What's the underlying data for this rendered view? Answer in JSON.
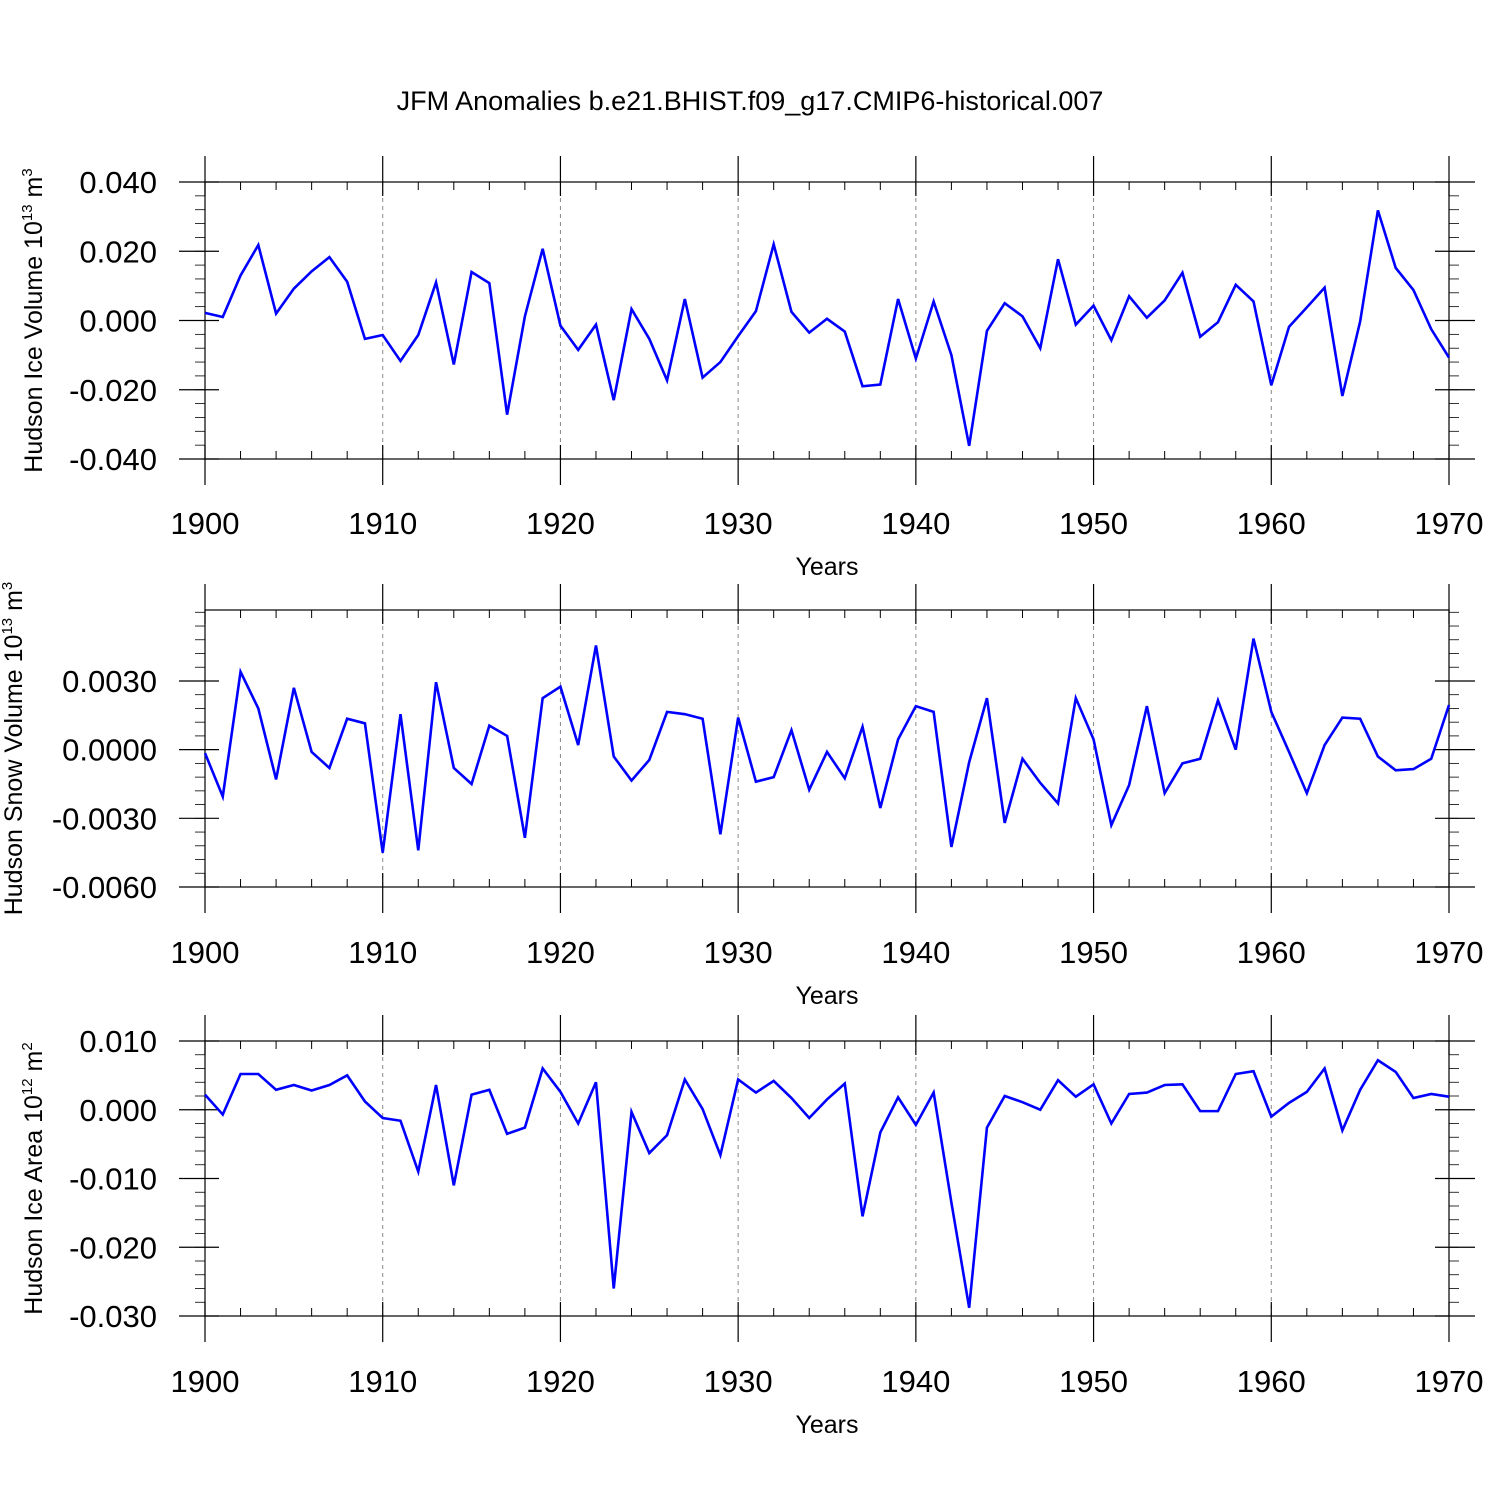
{
  "title": "JFM Anomalies b.e21.BHIST.f09_g17.CMIP6-historical.007",
  "line_color": "#0000ff",
  "chart_data": [
    {
      "type": "line",
      "ylabel_main": "Hudson Ice Volume 10",
      "ylabel_exp": "13",
      "ylabel_unit": " m",
      "ylabel_unit_exp": "3",
      "xlabel": "Years",
      "xlim": [
        1900,
        1970
      ],
      "ylim": [
        -0.04,
        0.04
      ],
      "yticks": [
        -0.04,
        -0.02,
        0.0,
        0.02,
        0.04
      ],
      "ytick_labels": [
        "-0.040",
        "-0.020",
        "0.000",
        "0.020",
        "0.040"
      ],
      "ytick_decimals": 3,
      "xticks": [
        1900,
        1910,
        1920,
        1930,
        1940,
        1950,
        1960,
        1970
      ],
      "xtick_labels": [
        "1900",
        "1910",
        "1920",
        "1930",
        "1940",
        "1950",
        "1960",
        "1970"
      ],
      "grid": "vertical-dashed",
      "series": [
        {
          "x_start": 1900,
          "values": [
            0.0022,
            0.001,
            0.013,
            0.0218,
            0.002,
            0.0092,
            0.0142,
            0.0183,
            0.0112,
            -0.0053,
            -0.0042,
            -0.0117,
            -0.0042,
            0.011,
            -0.0127,
            0.014,
            0.0108,
            -0.0272,
            0.0012,
            0.0207,
            -0.0015,
            -0.0085,
            -0.0012,
            -0.023,
            0.0033,
            -0.0053,
            -0.0173,
            0.0062,
            -0.0165,
            -0.012,
            -0.0045,
            0.0027,
            0.022,
            0.0025,
            -0.0035,
            0.0005,
            -0.0032,
            -0.019,
            -0.0185,
            0.0062,
            -0.011,
            0.0055,
            -0.01,
            -0.0362,
            -0.003,
            0.005,
            0.0012,
            -0.008,
            0.0177,
            -0.0012,
            0.0043,
            -0.0057,
            0.007,
            0.0008,
            0.0058,
            0.0138,
            -0.0047,
            -0.0005,
            0.0103,
            0.0055,
            -0.0187,
            -0.0018,
            0.0038,
            0.0095,
            -0.0218,
            -0.0003,
            0.0318,
            0.0152,
            0.0088,
            -0.0025,
            -0.0107
          ]
        }
      ]
    },
    {
      "type": "line",
      "ylabel_main": "Hudson Snow Volume 10",
      "ylabel_exp": "13",
      "ylabel_unit": " m",
      "ylabel_unit_exp": "3",
      "xlabel": "Years",
      "xlim": [
        1900,
        1970
      ],
      "ylim": [
        -0.006,
        0.0061
      ],
      "yticks": [
        -0.006,
        -0.003,
        0.0,
        0.003
      ],
      "ytick_labels": [
        "-0.0060",
        "-0.0030",
        "0.0000",
        "0.0030"
      ],
      "ytick_decimals": 4,
      "xticks": [
        1900,
        1910,
        1920,
        1930,
        1940,
        1950,
        1960,
        1970
      ],
      "xtick_labels": [
        "1900",
        "1910",
        "1920",
        "1930",
        "1940",
        "1950",
        "1960",
        "1970"
      ],
      "grid": "vertical-dashed",
      "series": [
        {
          "x_start": 1900,
          "values": [
            -0.00015,
            -0.00205,
            0.0034,
            0.0018,
            -0.0013,
            0.0027,
            -0.0001,
            -0.0008,
            0.00135,
            0.00115,
            -0.0045,
            0.00155,
            -0.0044,
            0.00295,
            -0.0008,
            -0.0015,
            0.00105,
            0.0006,
            -0.00385,
            0.00225,
            0.00275,
            0.0002,
            0.00455,
            -0.0003,
            -0.00135,
            -0.00045,
            0.00165,
            0.00155,
            0.00135,
            -0.0037,
            0.0014,
            -0.0014,
            -0.0012,
            0.00085,
            -0.00175,
            -0.0001,
            -0.00125,
            0.001,
            -0.00255,
            0.00045,
            0.0019,
            0.00165,
            -0.00425,
            -0.00055,
            0.00225,
            -0.0032,
            -0.0004,
            -0.00145,
            -0.00235,
            0.00225,
            0.00045,
            -0.0033,
            -0.00155,
            0.0019,
            -0.0019,
            -0.0006,
            -0.0004,
            0.00215,
            0.0,
            0.00485,
            0.00165,
            -0.0001,
            -0.0019,
            0.0002,
            0.0014,
            0.00135,
            -0.0003,
            -0.0009,
            -0.00085,
            -0.0004,
            0.00195
          ]
        }
      ]
    },
    {
      "type": "line",
      "ylabel_main": "Hudson Ice Area 10",
      "ylabel_exp": "12",
      "ylabel_unit": " m",
      "ylabel_unit_exp": "2",
      "xlabel": "Years",
      "xlim": [
        1900,
        1970
      ],
      "ylim": [
        -0.03,
        0.01
      ],
      "yticks": [
        -0.03,
        -0.02,
        -0.01,
        0.0,
        0.01
      ],
      "ytick_labels": [
        "-0.030",
        "-0.020",
        "-0.010",
        "0.000",
        "0.010"
      ],
      "ytick_decimals": 3,
      "xticks": [
        1900,
        1910,
        1920,
        1930,
        1940,
        1950,
        1960,
        1970
      ],
      "xtick_labels": [
        "1900",
        "1910",
        "1920",
        "1930",
        "1940",
        "1950",
        "1960",
        "1970"
      ],
      "grid": "vertical-dashed",
      "series": [
        {
          "x_start": 1900,
          "values": [
            0.0022,
            -0.0007,
            0.0052,
            0.0052,
            0.0029,
            0.0036,
            0.0028,
            0.0036,
            0.005,
            0.0012,
            -0.0012,
            -0.0016,
            -0.009,
            0.0036,
            -0.011,
            0.0022,
            0.0029,
            -0.0035,
            -0.0026,
            0.006,
            0.0026,
            -0.002,
            0.004,
            -0.026,
            -0.0003,
            -0.0063,
            -0.0037,
            0.0044,
            0.0001,
            -0.0066,
            0.0044,
            0.0025,
            0.0042,
            0.0017,
            -0.0012,
            0.0015,
            0.0038,
            -0.0155,
            -0.0033,
            0.0018,
            -0.0022,
            0.0025,
            -0.0135,
            -0.0288,
            -0.0026,
            0.002,
            0.0011,
            0.0,
            0.0043,
            0.0019,
            0.0037,
            -0.002,
            0.0023,
            0.0025,
            0.0036,
            0.0037,
            -0.0002,
            -0.0002,
            0.0052,
            0.0056,
            -0.001,
            0.001,
            0.0026,
            0.006,
            -0.003,
            0.0029,
            0.0072,
            0.0055,
            0.0017,
            0.0023,
            0.0019
          ]
        }
      ]
    }
  ]
}
